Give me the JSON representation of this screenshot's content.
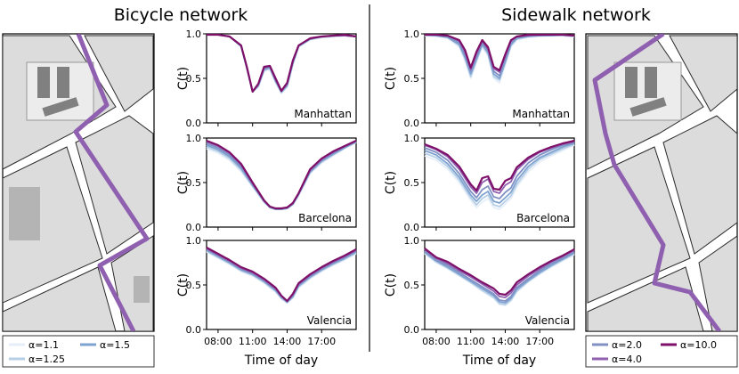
{
  "titles": {
    "left": "Bicycle network",
    "right": "Sidewalk network"
  },
  "common": {
    "ylabel": "C(t)",
    "xlabel": "Time of day",
    "xticks": [
      {
        "h": 8,
        "label": "08:00"
      },
      {
        "h": 11,
        "label": "11:00"
      },
      {
        "h": 14,
        "label": "14:00"
      },
      {
        "h": 17,
        "label": "17:00"
      }
    ],
    "yticks": [
      {
        "v": 0.0,
        "label": "0.0"
      },
      {
        "v": 0.5,
        "label": "0.5"
      },
      {
        "v": 1.0,
        "label": "1.0"
      }
    ],
    "xlim": [
      7,
      20
    ],
    "ylim": [
      0,
      1
    ]
  },
  "legends": {
    "bicycle": [
      {
        "label": "α=1.1",
        "color": "#e6eff9"
      },
      {
        "label": "α=1.5",
        "color": "#7fa3d1"
      },
      {
        "label": "α=1.25",
        "color": "#b7cfe6"
      }
    ],
    "sidewalk": [
      {
        "label": "α=2.0",
        "color": "#8090c4"
      },
      {
        "label": "α=10.0",
        "color": "#7e1069"
      },
      {
        "label": "α=4.0",
        "color": "#9060b0"
      }
    ]
  },
  "chart_data": [
    {
      "type": "line",
      "network": "bicycle",
      "city": "Manhattan",
      "x": [
        7,
        8,
        9,
        10,
        10.5,
        11,
        11.5,
        12,
        12.5,
        13,
        13.5,
        14,
        14.5,
        15,
        16,
        17,
        18,
        19,
        20
      ],
      "series": [
        {
          "name": "α=1.1",
          "color": "#e6eff9",
          "values": [
            0.99,
            0.99,
            0.97,
            0.85,
            0.6,
            0.35,
            0.4,
            0.58,
            0.6,
            0.45,
            0.33,
            0.4,
            0.65,
            0.85,
            0.93,
            0.96,
            0.97,
            0.98,
            0.97
          ]
        },
        {
          "name": "α=1.25",
          "color": "#b7cfe6",
          "values": [
            0.99,
            0.99,
            0.97,
            0.86,
            0.61,
            0.35,
            0.41,
            0.59,
            0.61,
            0.46,
            0.34,
            0.41,
            0.66,
            0.86,
            0.94,
            0.96,
            0.97,
            0.98,
            0.97
          ]
        },
        {
          "name": "α=1.5",
          "color": "#7fa3d1",
          "values": [
            0.99,
            0.99,
            0.97,
            0.86,
            0.62,
            0.35,
            0.42,
            0.6,
            0.62,
            0.47,
            0.35,
            0.42,
            0.67,
            0.86,
            0.94,
            0.97,
            0.98,
            0.98,
            0.97
          ]
        },
        {
          "name": "α=2.0",
          "color": "#8090c4",
          "values": [
            0.99,
            0.99,
            0.97,
            0.87,
            0.62,
            0.35,
            0.43,
            0.61,
            0.63,
            0.48,
            0.35,
            0.43,
            0.68,
            0.87,
            0.94,
            0.97,
            0.98,
            0.98,
            0.97
          ]
        },
        {
          "name": "α=4.0",
          "color": "#9060b0",
          "values": [
            0.99,
            0.99,
            0.97,
            0.87,
            0.63,
            0.35,
            0.44,
            0.62,
            0.64,
            0.49,
            0.36,
            0.44,
            0.69,
            0.87,
            0.95,
            0.97,
            0.98,
            0.98,
            0.97
          ]
        },
        {
          "name": "α=10.0",
          "color": "#7e1069",
          "values": [
            0.99,
            0.99,
            0.97,
            0.87,
            0.63,
            0.35,
            0.44,
            0.63,
            0.64,
            0.5,
            0.36,
            0.45,
            0.7,
            0.87,
            0.95,
            0.97,
            0.98,
            0.99,
            0.97
          ]
        }
      ]
    },
    {
      "type": "line",
      "network": "bicycle",
      "city": "Barcelona",
      "x": [
        7,
        8,
        9,
        10,
        11,
        12,
        12.5,
        13,
        13.5,
        14,
        14.5,
        15,
        16,
        17,
        18,
        19,
        20
      ],
      "series": [
        {
          "name": "α=1.1",
          "color": "#e6eff9",
          "values": [
            0.88,
            0.83,
            0.75,
            0.62,
            0.45,
            0.28,
            0.22,
            0.2,
            0.2,
            0.21,
            0.25,
            0.35,
            0.6,
            0.72,
            0.8,
            0.88,
            0.95
          ]
        },
        {
          "name": "α=1.25",
          "color": "#b7cfe6",
          "values": [
            0.9,
            0.85,
            0.77,
            0.64,
            0.46,
            0.28,
            0.22,
            0.2,
            0.2,
            0.21,
            0.25,
            0.36,
            0.61,
            0.73,
            0.81,
            0.89,
            0.95
          ]
        },
        {
          "name": "α=1.5",
          "color": "#7fa3d1",
          "values": [
            0.92,
            0.87,
            0.79,
            0.66,
            0.47,
            0.29,
            0.22,
            0.2,
            0.2,
            0.21,
            0.26,
            0.37,
            0.62,
            0.74,
            0.82,
            0.89,
            0.96
          ]
        },
        {
          "name": "α=2.0",
          "color": "#8090c4",
          "values": [
            0.94,
            0.89,
            0.81,
            0.68,
            0.48,
            0.29,
            0.23,
            0.2,
            0.2,
            0.22,
            0.26,
            0.37,
            0.63,
            0.75,
            0.83,
            0.9,
            0.96
          ]
        },
        {
          "name": "α=4.0",
          "color": "#9060b0",
          "values": [
            0.96,
            0.91,
            0.83,
            0.7,
            0.49,
            0.3,
            0.23,
            0.21,
            0.21,
            0.22,
            0.27,
            0.38,
            0.64,
            0.76,
            0.84,
            0.91,
            0.97
          ]
        },
        {
          "name": "α=10.0",
          "color": "#7e1069",
          "values": [
            0.97,
            0.92,
            0.84,
            0.71,
            0.5,
            0.3,
            0.23,
            0.21,
            0.21,
            0.22,
            0.27,
            0.38,
            0.65,
            0.77,
            0.85,
            0.91,
            0.97
          ]
        }
      ]
    },
    {
      "type": "line",
      "network": "bicycle",
      "city": "Valencia",
      "x": [
        7,
        8,
        9,
        10,
        11,
        12,
        13,
        13.5,
        14,
        14.5,
        15,
        16,
        17,
        18,
        19,
        20
      ],
      "series": [
        {
          "name": "α=1.1",
          "color": "#e6eff9",
          "values": [
            0.87,
            0.8,
            0.73,
            0.65,
            0.6,
            0.52,
            0.42,
            0.35,
            0.3,
            0.35,
            0.47,
            0.57,
            0.65,
            0.72,
            0.78,
            0.85
          ]
        },
        {
          "name": "α=1.25",
          "color": "#b7cfe6",
          "values": [
            0.88,
            0.81,
            0.74,
            0.66,
            0.61,
            0.53,
            0.43,
            0.35,
            0.3,
            0.36,
            0.48,
            0.58,
            0.66,
            0.73,
            0.79,
            0.86
          ]
        },
        {
          "name": "α=1.5",
          "color": "#7fa3d1",
          "values": [
            0.89,
            0.82,
            0.75,
            0.67,
            0.62,
            0.54,
            0.44,
            0.36,
            0.31,
            0.37,
            0.49,
            0.59,
            0.67,
            0.74,
            0.8,
            0.87
          ]
        },
        {
          "name": "α=2.0",
          "color": "#8090c4",
          "values": [
            0.9,
            0.83,
            0.76,
            0.68,
            0.63,
            0.55,
            0.45,
            0.37,
            0.31,
            0.38,
            0.5,
            0.6,
            0.68,
            0.75,
            0.81,
            0.88
          ]
        },
        {
          "name": "α=4.0",
          "color": "#9060b0",
          "values": [
            0.91,
            0.84,
            0.77,
            0.69,
            0.64,
            0.56,
            0.46,
            0.38,
            0.32,
            0.39,
            0.51,
            0.61,
            0.69,
            0.76,
            0.82,
            0.89
          ]
        },
        {
          "name": "α=10.0",
          "color": "#7e1069",
          "values": [
            0.92,
            0.85,
            0.78,
            0.7,
            0.65,
            0.57,
            0.47,
            0.38,
            0.32,
            0.4,
            0.52,
            0.62,
            0.7,
            0.77,
            0.83,
            0.9
          ]
        }
      ]
    },
    {
      "type": "line",
      "network": "sidewalk",
      "city": "Manhattan",
      "x": [
        7,
        8,
        9,
        10,
        10.5,
        11,
        11.5,
        12,
        12.5,
        13,
        13.5,
        14,
        14.5,
        15,
        16,
        17,
        18,
        19,
        20
      ],
      "series": [
        {
          "name": "α=1.1",
          "color": "#e6eff9",
          "values": [
            0.98,
            0.97,
            0.95,
            0.85,
            0.7,
            0.5,
            0.68,
            0.85,
            0.75,
            0.5,
            0.45,
            0.65,
            0.85,
            0.93,
            0.96,
            0.97,
            0.98,
            0.98,
            0.97
          ]
        },
        {
          "name": "α=1.25",
          "color": "#b7cfe6",
          "values": [
            0.98,
            0.98,
            0.96,
            0.87,
            0.72,
            0.52,
            0.7,
            0.87,
            0.77,
            0.52,
            0.48,
            0.67,
            0.87,
            0.94,
            0.97,
            0.98,
            0.98,
            0.98,
            0.97
          ]
        },
        {
          "name": "α=1.5",
          "color": "#7fa3d1",
          "values": [
            0.99,
            0.98,
            0.96,
            0.88,
            0.74,
            0.55,
            0.72,
            0.88,
            0.79,
            0.55,
            0.5,
            0.69,
            0.88,
            0.95,
            0.97,
            0.98,
            0.98,
            0.99,
            0.98
          ]
        },
        {
          "name": "α=2.0",
          "color": "#8090c4",
          "values": [
            0.99,
            0.99,
            0.97,
            0.9,
            0.77,
            0.58,
            0.75,
            0.9,
            0.81,
            0.58,
            0.53,
            0.72,
            0.9,
            0.96,
            0.98,
            0.98,
            0.99,
            0.99,
            0.98
          ]
        },
        {
          "name": "α=4.0",
          "color": "#9060b0",
          "values": [
            0.99,
            0.99,
            0.98,
            0.92,
            0.8,
            0.6,
            0.78,
            0.92,
            0.83,
            0.61,
            0.57,
            0.75,
            0.92,
            0.97,
            0.98,
            0.99,
            0.99,
            0.99,
            0.98
          ]
        },
        {
          "name": "α=10.0",
          "color": "#7e1069",
          "values": [
            0.99,
            0.99,
            0.98,
            0.93,
            0.82,
            0.62,
            0.8,
            0.93,
            0.85,
            0.63,
            0.59,
            0.77,
            0.93,
            0.97,
            0.99,
            0.99,
            0.99,
            0.99,
            0.98
          ]
        }
      ]
    },
    {
      "type": "line",
      "network": "sidewalk",
      "city": "Barcelona",
      "x": [
        7,
        8,
        9,
        10,
        11,
        11.5,
        12,
        12.5,
        13,
        13.5,
        14,
        14.5,
        15,
        16,
        17,
        18,
        19,
        20
      ],
      "series": [
        {
          "name": "α=1.1",
          "color": "#e6eff9",
          "values": [
            0.8,
            0.75,
            0.65,
            0.5,
            0.3,
            0.22,
            0.28,
            0.32,
            0.22,
            0.2,
            0.26,
            0.32,
            0.45,
            0.62,
            0.73,
            0.8,
            0.86,
            0.92
          ]
        },
        {
          "name": "α=1.25",
          "color": "#b7cfe6",
          "values": [
            0.83,
            0.78,
            0.68,
            0.53,
            0.33,
            0.25,
            0.32,
            0.36,
            0.25,
            0.23,
            0.29,
            0.35,
            0.48,
            0.65,
            0.76,
            0.82,
            0.88,
            0.93
          ]
        },
        {
          "name": "α=1.5",
          "color": "#7fa3d1",
          "values": [
            0.86,
            0.81,
            0.71,
            0.56,
            0.36,
            0.29,
            0.36,
            0.4,
            0.29,
            0.27,
            0.33,
            0.39,
            0.52,
            0.68,
            0.78,
            0.84,
            0.9,
            0.94
          ]
        },
        {
          "name": "α=2.0",
          "color": "#8090c4",
          "values": [
            0.89,
            0.84,
            0.75,
            0.6,
            0.4,
            0.33,
            0.42,
            0.46,
            0.34,
            0.32,
            0.39,
            0.44,
            0.57,
            0.72,
            0.81,
            0.87,
            0.92,
            0.95
          ]
        },
        {
          "name": "α=4.0",
          "color": "#9060b0",
          "values": [
            0.92,
            0.87,
            0.79,
            0.65,
            0.45,
            0.38,
            0.5,
            0.54,
            0.4,
            0.38,
            0.47,
            0.51,
            0.64,
            0.76,
            0.84,
            0.89,
            0.93,
            0.96
          ]
        },
        {
          "name": "α=10.0",
          "color": "#7e1069",
          "values": [
            0.93,
            0.88,
            0.81,
            0.68,
            0.48,
            0.41,
            0.55,
            0.57,
            0.43,
            0.42,
            0.52,
            0.55,
            0.67,
            0.78,
            0.85,
            0.9,
            0.94,
            0.97
          ]
        }
      ]
    },
    {
      "type": "line",
      "network": "sidewalk",
      "city": "Valencia",
      "x": [
        7,
        8,
        9,
        10,
        11,
        12,
        13,
        13.5,
        14,
        14.5,
        15,
        16,
        17,
        18,
        19,
        20
      ],
      "series": [
        {
          "name": "α=1.1",
          "color": "#e6eff9",
          "values": [
            0.85,
            0.75,
            0.68,
            0.6,
            0.52,
            0.43,
            0.35,
            0.28,
            0.27,
            0.32,
            0.42,
            0.53,
            0.62,
            0.7,
            0.77,
            0.84
          ]
        },
        {
          "name": "α=1.25",
          "color": "#b7cfe6",
          "values": [
            0.86,
            0.76,
            0.69,
            0.61,
            0.53,
            0.44,
            0.36,
            0.29,
            0.28,
            0.33,
            0.43,
            0.54,
            0.63,
            0.71,
            0.78,
            0.85
          ]
        },
        {
          "name": "α=1.5",
          "color": "#7fa3d1",
          "values": [
            0.87,
            0.77,
            0.7,
            0.62,
            0.54,
            0.46,
            0.38,
            0.31,
            0.3,
            0.35,
            0.45,
            0.55,
            0.64,
            0.72,
            0.79,
            0.86
          ]
        },
        {
          "name": "α=2.0",
          "color": "#8090c4",
          "values": [
            0.88,
            0.78,
            0.72,
            0.64,
            0.56,
            0.48,
            0.4,
            0.33,
            0.32,
            0.37,
            0.47,
            0.57,
            0.66,
            0.74,
            0.8,
            0.87
          ]
        },
        {
          "name": "α=4.0",
          "color": "#9060b0",
          "values": [
            0.9,
            0.8,
            0.74,
            0.66,
            0.59,
            0.51,
            0.43,
            0.37,
            0.36,
            0.41,
            0.5,
            0.6,
            0.68,
            0.76,
            0.82,
            0.89
          ]
        },
        {
          "name": "α=10.0",
          "color": "#7e1069",
          "values": [
            0.91,
            0.81,
            0.76,
            0.68,
            0.61,
            0.53,
            0.46,
            0.4,
            0.39,
            0.44,
            0.53,
            0.62,
            0.7,
            0.77,
            0.83,
            0.9
          ]
        }
      ]
    }
  ]
}
